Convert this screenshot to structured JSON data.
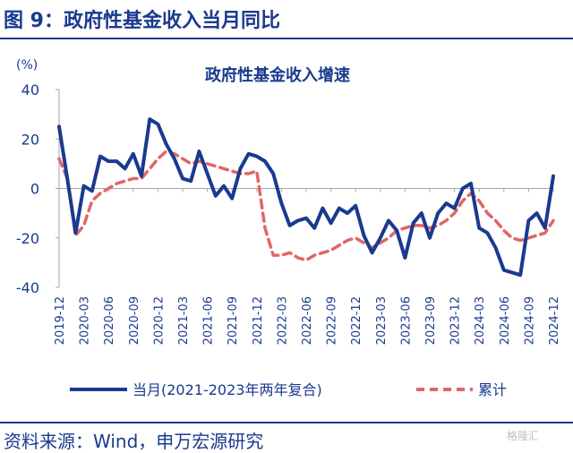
{
  "header": {
    "title": "图 9：政府性基金收入当月同比"
  },
  "footer": {
    "source": "资料来源：Wind，申万宏源研究",
    "watermark": "格隆汇"
  },
  "chart_data": {
    "type": "line",
    "title": "政府性基金收入增速",
    "ylabel": "(%)",
    "ylim": [
      -40,
      40
    ],
    "yticks": [
      40,
      20,
      0,
      -20,
      -40
    ],
    "grid": false,
    "legend_position": "bottom",
    "x": [
      "2019-12",
      "2020-01",
      "2020-02",
      "2020-03",
      "2020-04",
      "2020-05",
      "2020-06",
      "2020-07",
      "2020-08",
      "2020-09",
      "2020-10",
      "2020-11",
      "2020-12",
      "2021-01",
      "2021-02",
      "2021-03",
      "2021-04",
      "2021-05",
      "2021-06",
      "2021-07",
      "2021-08",
      "2021-09",
      "2021-10",
      "2021-11",
      "2021-12",
      "2022-01",
      "2022-02",
      "2022-03",
      "2022-04",
      "2022-05",
      "2022-06",
      "2022-07",
      "2022-08",
      "2022-09",
      "2022-10",
      "2022-11",
      "2022-12",
      "2023-01",
      "2023-02",
      "2023-03",
      "2023-04",
      "2023-05",
      "2023-06",
      "2023-07",
      "2023-08",
      "2023-09",
      "2023-10",
      "2023-11",
      "2023-12",
      "2024-01",
      "2024-02",
      "2024-03",
      "2024-04",
      "2024-05",
      "2024-06",
      "2024-07",
      "2024-08",
      "2024-09",
      "2024-10",
      "2024-11",
      "2024-12"
    ],
    "xtick_labels": [
      "2019-12",
      "2020-03",
      "2020-06",
      "2020-09",
      "2020-12",
      "2021-03",
      "2021-06",
      "2021-09",
      "2021-12",
      "2022-03",
      "2022-06",
      "2022-09",
      "2022-12",
      "2023-03",
      "2023-06",
      "2023-09",
      "2023-12",
      "2024-03",
      "2024-06",
      "2024-09",
      "2024-12"
    ],
    "series": [
      {
        "name": "当月(2021-2023年两年复合)",
        "color": "#1a3a8f",
        "style": "solid",
        "values": [
          25,
          4,
          -18,
          1,
          -1,
          13,
          11,
          11,
          8,
          14,
          5,
          28,
          26,
          18,
          12,
          4,
          3,
          15,
          6,
          -3,
          1,
          -4,
          8,
          14,
          13,
          11,
          6,
          -6,
          -15,
          -13,
          -12,
          -16,
          -8,
          -14,
          -8,
          -10,
          -7,
          -19,
          -26,
          -20,
          -13,
          -17,
          -28,
          -14,
          -10,
          -20,
          -10,
          -6,
          -8,
          0,
          2,
          -16,
          -18,
          -24,
          -33,
          -34,
          -35,
          -13,
          -10,
          -16,
          5
        ]
      },
      {
        "name": "累计",
        "color": "#e06666",
        "style": "dashed",
        "values": [
          12,
          4,
          -19,
          -15,
          -5,
          -2,
          0,
          2,
          3,
          4,
          4,
          8,
          12,
          15,
          14,
          12,
          10,
          11,
          10,
          9,
          8,
          7,
          6,
          6,
          7,
          -16,
          -27,
          -27,
          -26,
          -28,
          -29,
          -27,
          -26,
          -25,
          -23,
          -21,
          -20,
          -22,
          -24,
          -22,
          -20,
          -17,
          -16,
          -15,
          -15,
          -16,
          -15,
          -13,
          -10,
          -5,
          -2,
          -5,
          -10,
          -13,
          -17,
          -20,
          -21,
          -20,
          -19,
          -18,
          -13
        ]
      }
    ]
  }
}
